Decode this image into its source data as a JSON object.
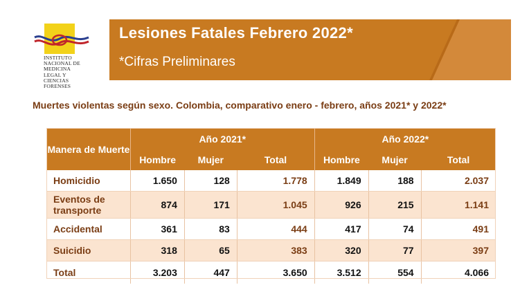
{
  "logo": {
    "institute_text": [
      "INSTITUTO",
      "NACIONAL DE",
      "MEDICINA",
      "LEGAL Y",
      "CIENCIAS",
      "FORENSES"
    ]
  },
  "banner": {
    "title": "Lesiones Fatales Febrero 2022*",
    "subtitle": "*Cifras Preliminares"
  },
  "heading": "Muertes violentas según sexo. Colombia, comparativo enero - febrero, años 2021* y 2022*",
  "table": {
    "corner_header": "Manera de Muerte",
    "groups": [
      "Año 2021*",
      "Año 2022*"
    ],
    "sub_headers": [
      "Hombre",
      "Mujer",
      "Total",
      "Hombre",
      "Mujer",
      "Total"
    ],
    "rows": [
      {
        "label": "Homicidio",
        "values": [
          "1.650",
          "128",
          "1.778",
          "1.849",
          "188",
          "2.037"
        ]
      },
      {
        "label": "Eventos de transporte",
        "values": [
          "874",
          "171",
          "1.045",
          "926",
          "215",
          "1.141"
        ]
      },
      {
        "label": "Accidental",
        "values": [
          "361",
          "83",
          "444",
          "417",
          "74",
          "491"
        ]
      },
      {
        "label": "Suicidio",
        "values": [
          "318",
          "65",
          "383",
          "320",
          "77",
          "397"
        ]
      },
      {
        "label": "Total",
        "values": [
          "3.203",
          "447",
          "3.650",
          "3.512",
          "554",
          "4.066"
        ]
      }
    ]
  },
  "colors": {
    "brand_orange": "#c87a21",
    "heading_brown": "#7a3d14",
    "stripe": "#fbe4d0"
  }
}
